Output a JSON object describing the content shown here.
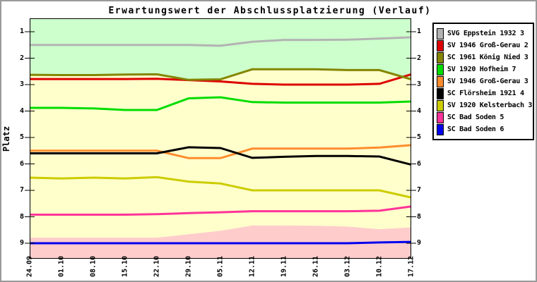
{
  "chart_data": {
    "type": "line",
    "title": "Erwartungswert der Abschlussplatzierung (Verlauf)",
    "ylabel": "Platz",
    "xlabel": "",
    "y_ticks": [
      1,
      2,
      3,
      4,
      5,
      6,
      7,
      8,
      9
    ],
    "y_axis_inverted": true,
    "y_range": [
      0.5,
      9.6
    ],
    "grid": false,
    "legend_position": "right",
    "x_tick_labels": [
      "24.09",
      "01.10",
      "08.10",
      "15.10",
      "22.10",
      "29.10",
      "05.11",
      "12.11",
      "19.11",
      "26.11",
      "03.12",
      "10.12",
      "17.12"
    ],
    "series": [
      {
        "name": "SVG Eppstein 1932 3",
        "color": "#b3b3b3",
        "values": [
          1.5,
          1.5,
          1.5,
          1.5,
          1.5,
          1.5,
          1.53,
          1.38,
          1.31,
          1.31,
          1.3,
          1.26,
          1.21
        ]
      },
      {
        "name": "SV 1946 Groß-Gerau 2",
        "color": "#dd0000",
        "values": [
          2.79,
          2.79,
          2.79,
          2.79,
          2.78,
          2.83,
          2.88,
          2.97,
          3.0,
          3.0,
          3.0,
          2.97,
          2.61
        ]
      },
      {
        "name": "SC 1961 König Nied 3",
        "color": "#858500",
        "values": [
          2.63,
          2.64,
          2.64,
          2.62,
          2.61,
          2.82,
          2.8,
          2.42,
          2.42,
          2.42,
          2.45,
          2.45,
          2.8
        ]
      },
      {
        "name": "SV 1920 Hofheim 7",
        "color": "#00dd00",
        "values": [
          3.88,
          3.88,
          3.9,
          3.96,
          3.96,
          3.52,
          3.48,
          3.66,
          3.68,
          3.68,
          3.68,
          3.68,
          3.64
        ]
      },
      {
        "name": "SV 1946 Groß-Gerau 3",
        "color": "#ff8c2e",
        "values": [
          5.5,
          5.5,
          5.5,
          5.5,
          5.5,
          5.78,
          5.78,
          5.42,
          5.42,
          5.42,
          5.42,
          5.38,
          5.29
        ]
      },
      {
        "name": "SC Flörsheim 1921 4",
        "color": "#000000",
        "values": [
          5.6,
          5.6,
          5.6,
          5.6,
          5.6,
          5.37,
          5.4,
          5.77,
          5.73,
          5.7,
          5.7,
          5.72,
          6.03
        ]
      },
      {
        "name": "SV 1920 Kelsterbach 3",
        "color": "#cccc00",
        "values": [
          6.52,
          6.55,
          6.52,
          6.55,
          6.5,
          6.67,
          6.74,
          7.0,
          7.0,
          7.0,
          7.0,
          7.0,
          7.27
        ]
      },
      {
        "name": "SC Bad Soden 5",
        "color": "#ff3399",
        "values": [
          7.92,
          7.92,
          7.92,
          7.92,
          7.9,
          7.86,
          7.83,
          7.79,
          7.79,
          7.79,
          7.79,
          7.77,
          7.61
        ]
      },
      {
        "name": "SC Bad Soden 6",
        "color": "#0000ee",
        "values": [
          9.0,
          9.0,
          9.0,
          9.0,
          9.0,
          9.0,
          9.0,
          9.0,
          9.0,
          9.0,
          9.0,
          8.97,
          8.95
        ]
      }
    ],
    "zones": {
      "promotion_color": "#ccffcc",
      "midfield_color": "#ffffcc",
      "relegation_color": "#ffcccc",
      "green_zone_bottom": [
        2.67,
        2.68,
        2.68,
        2.66,
        2.65,
        2.86,
        2.84,
        2.46,
        2.46,
        2.46,
        2.49,
        2.49,
        2.84
      ],
      "pink_zone_top": [
        8.79,
        8.79,
        8.79,
        8.79,
        8.79,
        8.66,
        8.53,
        8.33,
        8.33,
        8.34,
        8.37,
        8.47,
        8.4
      ]
    }
  }
}
